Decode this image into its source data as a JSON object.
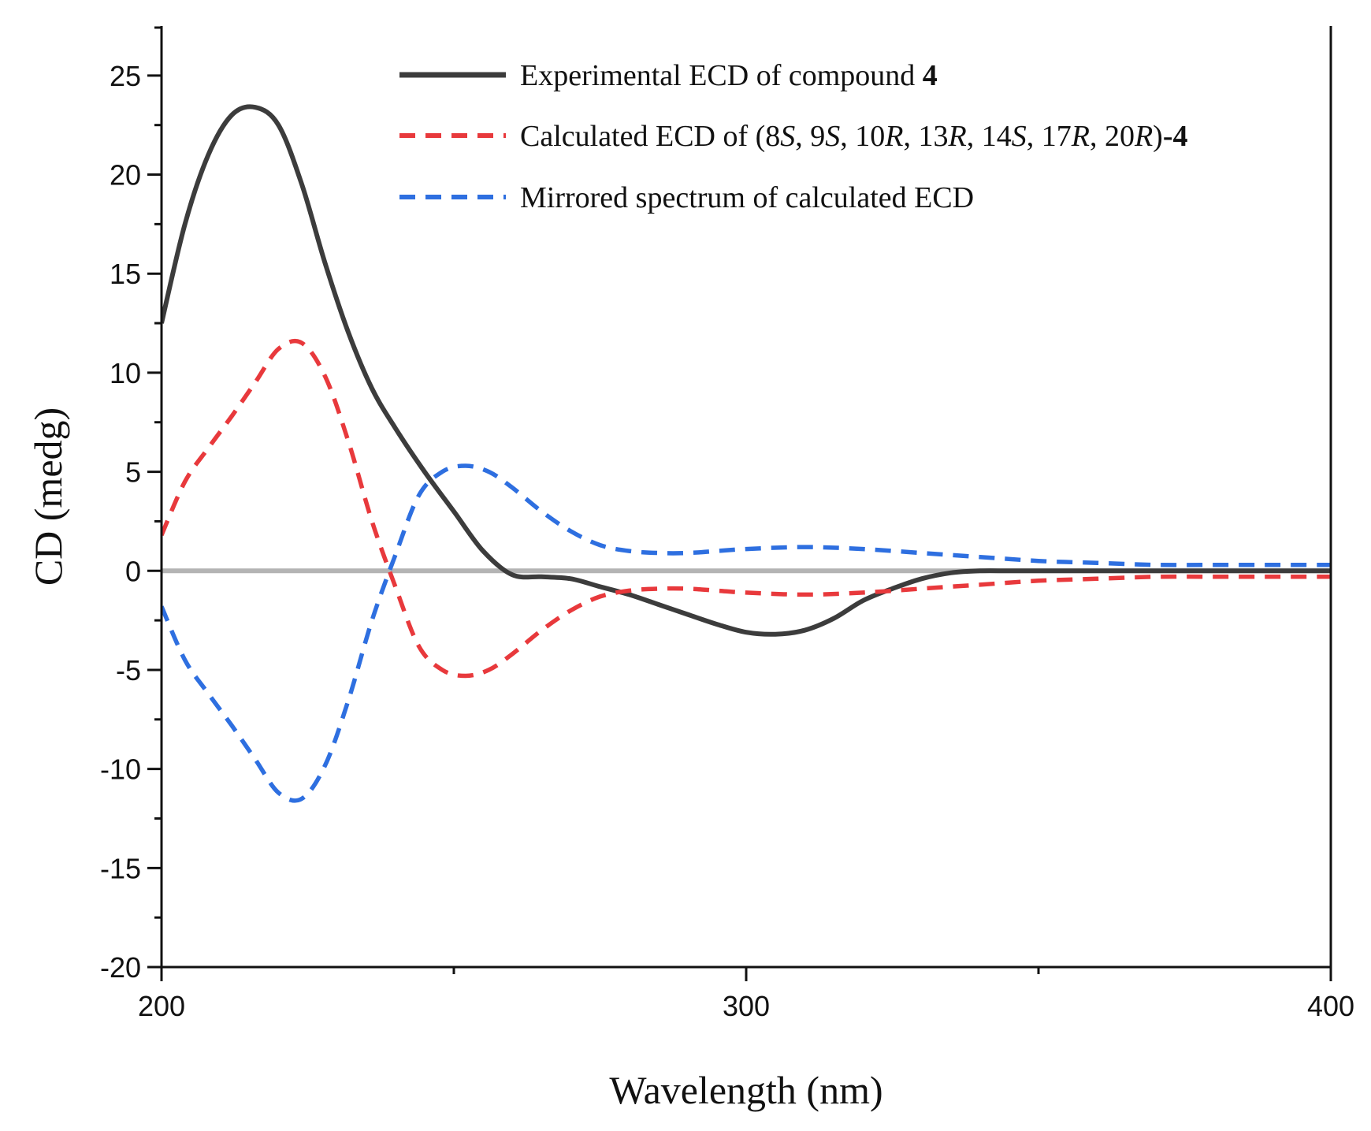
{
  "chart_data": {
    "type": "line",
    "title": "",
    "xlabel": "Wavelength (nm)",
    "ylabel": "CD (medg)",
    "xlim": [
      200,
      400
    ],
    "ylim": [
      -20,
      27.5
    ],
    "x_ticks": [
      200,
      300,
      400
    ],
    "x_tick_labels": [
      "200",
      "300",
      "400"
    ],
    "x_minor_ticks": [
      250,
      350
    ],
    "y_ticks": [
      -20,
      -15,
      -10,
      -5,
      0,
      5,
      10,
      15,
      20,
      25
    ],
    "y_tick_labels": [
      "-20",
      "-15",
      "-10",
      "-5",
      "0",
      "5",
      "10",
      "15",
      "20",
      "25"
    ],
    "baseline": {
      "y": 0,
      "color": "#b4b4b4"
    },
    "legend_position": "top-right",
    "series": [
      {
        "name": "Experimental ECD of compound 4",
        "color": "#3c3c3c",
        "style": "solid",
        "x": [
          200,
          204,
          208,
          212,
          216,
          220,
          224,
          228,
          232,
          236,
          240,
          245,
          250,
          255,
          260,
          265,
          270,
          275,
          280,
          285,
          290,
          295,
          300,
          305,
          310,
          315,
          320,
          325,
          330,
          335,
          340,
          345,
          350,
          355,
          360,
          365,
          370,
          380,
          390,
          400
        ],
        "values": [
          12.5,
          17.5,
          21.0,
          23.0,
          23.4,
          22.5,
          19.5,
          15.5,
          12.0,
          9.2,
          7.2,
          5.0,
          3.0,
          1.0,
          -0.2,
          -0.3,
          -0.4,
          -0.8,
          -1.2,
          -1.7,
          -2.2,
          -2.7,
          -3.1,
          -3.2,
          -3.0,
          -2.4,
          -1.5,
          -0.9,
          -0.4,
          -0.1,
          0.0,
          0.0,
          0.0,
          0.0,
          0.0,
          0.0,
          0.0,
          0.0,
          0.0,
          0.0
        ]
      },
      {
        "name": "Calculated ECD of (8S, 9S, 10R, 13R, 14S, 17R, 20R)-4",
        "color": "#e8393c",
        "style": "dashed",
        "x": [
          200,
          204,
          208,
          212,
          216,
          220,
          224,
          228,
          232,
          236,
          240,
          244,
          248,
          252,
          256,
          260,
          265,
          270,
          275,
          280,
          285,
          290,
          295,
          300,
          310,
          320,
          330,
          340,
          350,
          360,
          370,
          380,
          390,
          400
        ],
        "values": [
          1.8,
          4.5,
          6.2,
          7.8,
          9.5,
          11.2,
          11.5,
          9.8,
          6.5,
          2.5,
          -0.8,
          -3.8,
          -5.0,
          -5.3,
          -5.0,
          -4.2,
          -3.0,
          -2.0,
          -1.3,
          -1.0,
          -0.9,
          -0.9,
          -1.0,
          -1.1,
          -1.2,
          -1.1,
          -0.9,
          -0.7,
          -0.5,
          -0.4,
          -0.3,
          -0.3,
          -0.3,
          -0.3
        ]
      },
      {
        "name": "Mirrored spectrum of calculated ECD",
        "color": "#2e6fe0",
        "style": "dashed",
        "x": [
          200,
          204,
          208,
          212,
          216,
          220,
          224,
          228,
          232,
          236,
          240,
          244,
          248,
          252,
          256,
          260,
          265,
          270,
          275,
          280,
          285,
          290,
          295,
          300,
          310,
          320,
          330,
          340,
          350,
          360,
          370,
          380,
          390,
          400
        ],
        "values": [
          -1.8,
          -4.5,
          -6.2,
          -7.8,
          -9.5,
          -11.2,
          -11.5,
          -9.8,
          -6.5,
          -2.5,
          0.8,
          3.8,
          5.0,
          5.3,
          5.0,
          4.2,
          3.0,
          2.0,
          1.3,
          1.0,
          0.9,
          0.9,
          1.0,
          1.1,
          1.2,
          1.1,
          0.9,
          0.7,
          0.5,
          0.4,
          0.3,
          0.3,
          0.3,
          0.3
        ]
      }
    ],
    "legend": [
      {
        "parts": [
          {
            "t": "Experimental ECD of compound ",
            "s": "n"
          },
          {
            "t": "4",
            "s": "b"
          }
        ]
      },
      {
        "parts": [
          {
            "t": "Calculated ECD of (8",
            "s": "n"
          },
          {
            "t": "S",
            "s": "i"
          },
          {
            "t": ", 9",
            "s": "n"
          },
          {
            "t": "S",
            "s": "i"
          },
          {
            "t": ", 10",
            "s": "n"
          },
          {
            "t": "R",
            "s": "i"
          },
          {
            "t": ", 13",
            "s": "n"
          },
          {
            "t": "R",
            "s": "i"
          },
          {
            "t": ", 14",
            "s": "n"
          },
          {
            "t": "S",
            "s": "i"
          },
          {
            "t": ", 17",
            "s": "n"
          },
          {
            "t": "R",
            "s": "i"
          },
          {
            "t": ", 20",
            "s": "n"
          },
          {
            "t": "R",
            "s": "i"
          },
          {
            "t": ")",
            "s": "n"
          },
          {
            "t": "-4",
            "s": "b"
          }
        ]
      },
      {
        "parts": [
          {
            "t": "Mirrored spectrum of calculated ECD",
            "s": "n"
          }
        ]
      }
    ]
  }
}
